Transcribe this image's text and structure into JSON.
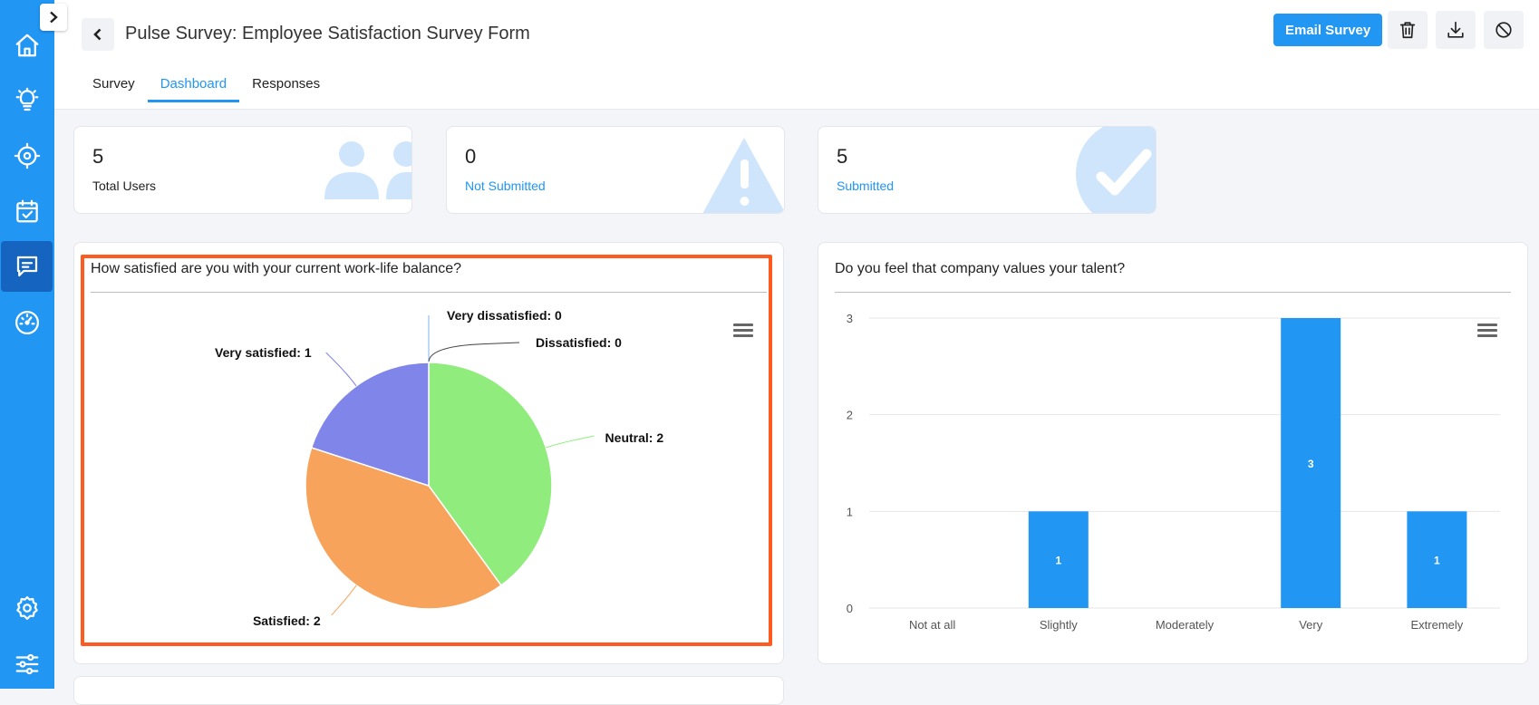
{
  "header": {
    "title": "Pulse Survey: Employee Satisfaction Survey Form",
    "email_button": "Email Survey",
    "tabs": [
      {
        "label": "Survey"
      },
      {
        "label": "Dashboard"
      },
      {
        "label": "Responses"
      }
    ],
    "active_tab": "Dashboard"
  },
  "sidebar": {
    "items": [
      {
        "icon": "home-icon"
      },
      {
        "icon": "lightbulb-icon"
      },
      {
        "icon": "target-icon"
      },
      {
        "icon": "calendar-check-icon"
      },
      {
        "icon": "chat-icon",
        "active": true
      },
      {
        "icon": "gauge-icon"
      },
      {
        "icon": "settings-icon"
      },
      {
        "icon": "sliders-icon"
      }
    ]
  },
  "stats": [
    {
      "value": "5",
      "label": "Total Users",
      "icon": "users-icon"
    },
    {
      "value": "0",
      "label": "Not Submitted",
      "icon": "warning-icon"
    },
    {
      "value": "5",
      "label": "Submitted",
      "icon": "check-circle-icon"
    }
  ],
  "colors": {
    "accent": "#2196f3",
    "highlight": "#ff5a1f",
    "pie_neutral": "#90ed7d",
    "pie_satisfied": "#f7a35c",
    "pie_very_satisfied": "#8085e9"
  },
  "chart_data": [
    {
      "type": "pie",
      "title": "How satisfied are you with your current work-life balance?",
      "slices": [
        {
          "label": "Very dissatisfied",
          "value": 0,
          "display": "Very dissatisfied: 0",
          "color": "#7cb5ec"
        },
        {
          "label": "Dissatisfied",
          "value": 0,
          "display": "Dissatisfied: 0",
          "color": "#434348"
        },
        {
          "label": "Neutral",
          "value": 2,
          "display": "Neutral: 2",
          "color": "#90ed7d"
        },
        {
          "label": "Satisfied",
          "value": 2,
          "display": "Satisfied: 2",
          "color": "#f7a35c"
        },
        {
          "label": "Very satisfied",
          "value": 1,
          "display": "Very satisfied: 1",
          "color": "#8085e9"
        }
      ]
    },
    {
      "type": "bar",
      "title": "Do you feel that company values your talent?",
      "categories": [
        "Not at all",
        "Slightly",
        "Moderately",
        "Very",
        "Extremely"
      ],
      "values": [
        0,
        1,
        0,
        3,
        1
      ],
      "ylim": [
        0,
        3
      ],
      "yticks": [
        "0",
        "1",
        "2",
        "3"
      ],
      "bar_labels": [
        "",
        "1",
        "",
        "3",
        "1"
      ],
      "color": "#2196f3",
      "grid": true
    }
  ]
}
